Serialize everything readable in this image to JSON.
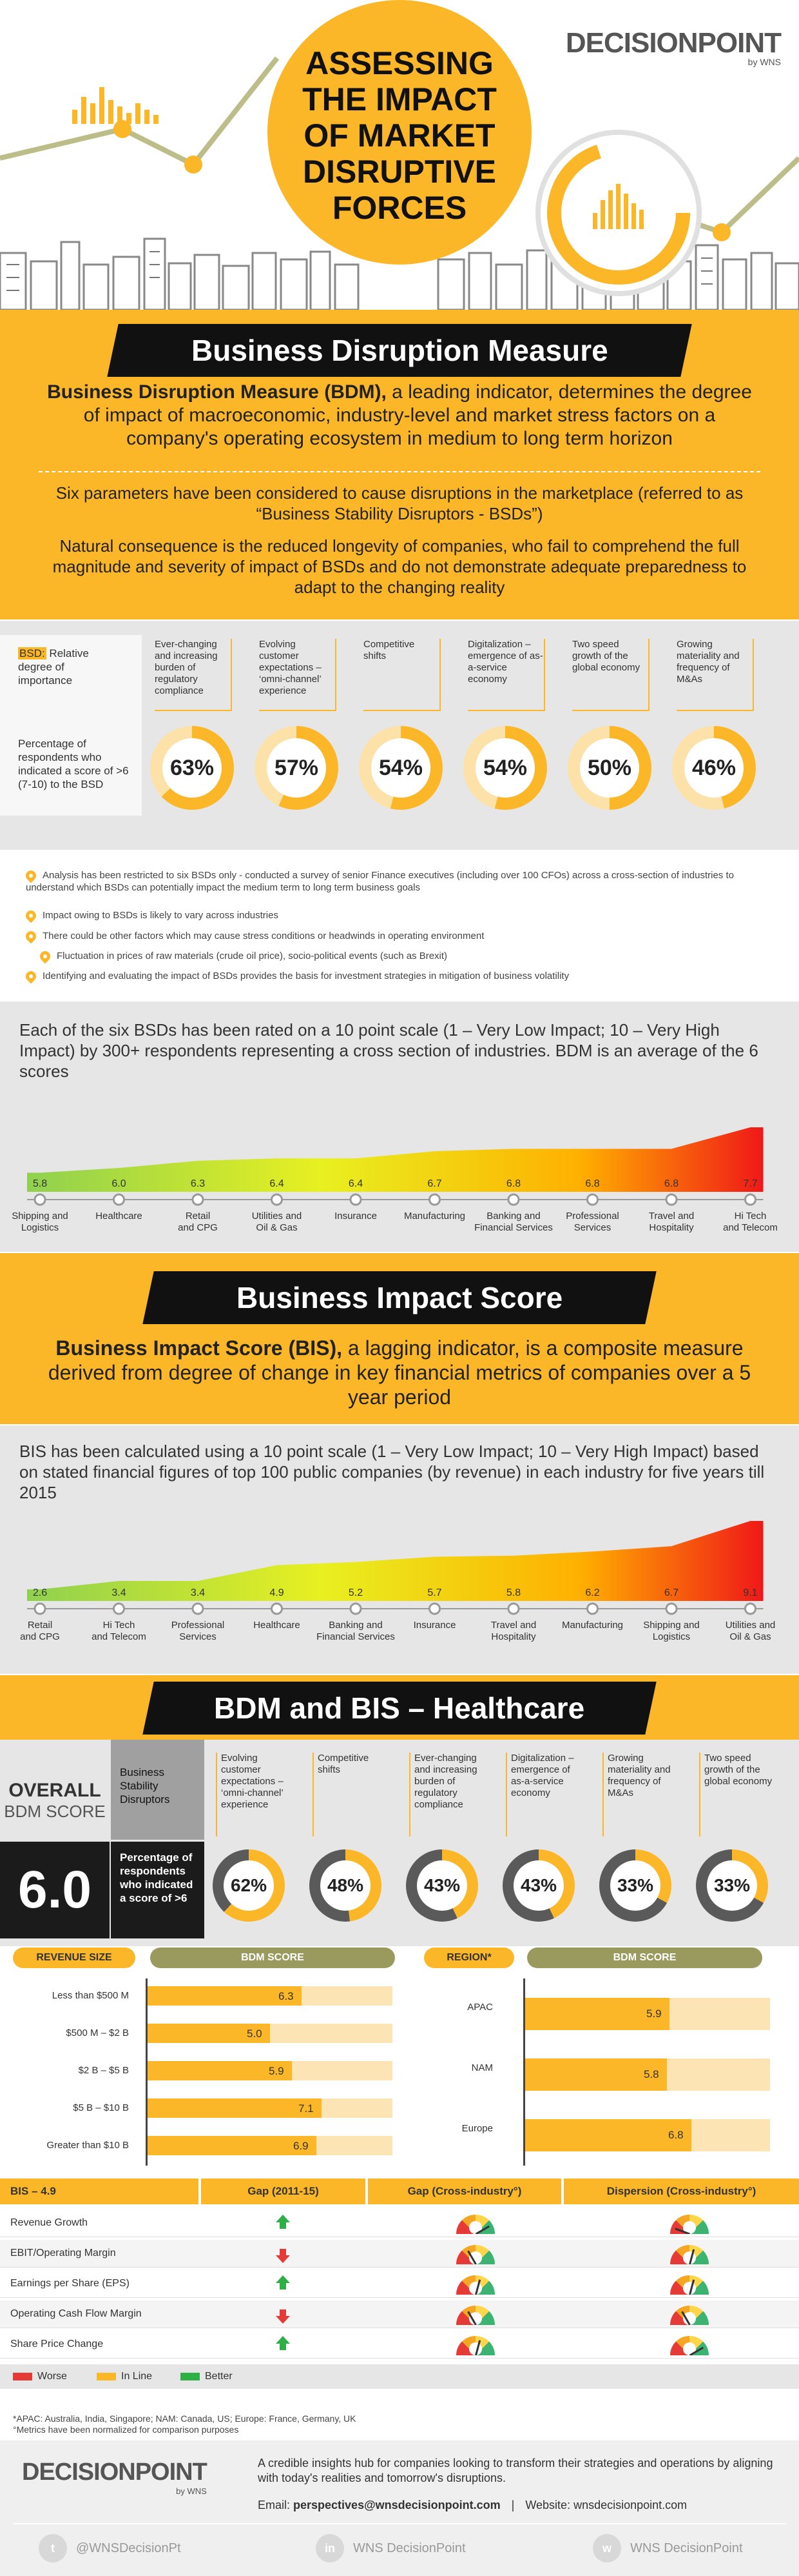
{
  "header": {
    "brand": "DECISIONPOINT",
    "brand_by": "by WNS",
    "title_lines": [
      "ASSESSING",
      "THE IMPACT",
      "OF MARKET",
      "DISRUPTIVE",
      "FORCES"
    ]
  },
  "bdm": {
    "heading": "Business Disruption Measure",
    "intro_bold": "Business Disruption Measure (BDM),",
    "intro_rest": " a leading indicator, determines the degree of impact of macroeconomic, industry-level and market stress factors on a company's operating ecosystem in medium to long term horizon",
    "params_text": "Six parameters have been considered to cause disruptions in the marketplace (referred to as “Business Stability Disruptors - BSDs”)",
    "consequence_text": "Natural consequence is the reduced longevity of companies, who fail to comprehend the full magnitude and severity of impact of BSDs and do not demonstrate adequate preparedness to adapt to the changing reality",
    "bsd_label_abbr": "BSD:",
    "bsd_label_rest": " Relative degree of importance",
    "pct_label": "Percentage of respondents who indicated a score of >6 (7-10) to the BSD",
    "bsds": [
      {
        "label": "Ever-changing and increasing burden of regulatory compliance",
        "pct": "63%",
        "value": 63
      },
      {
        "label": "Evolving customer expectations – ‘omni-channel’ experience",
        "pct": "57%",
        "value": 57
      },
      {
        "label": "Competitive shifts",
        "pct": "54%",
        "value": 54
      },
      {
        "label": "Digitalization – emergence of as-a-service economy",
        "pct": "54%",
        "value": 54
      },
      {
        "label": "Two speed growth of the global economy",
        "pct": "50%",
        "value": 50
      },
      {
        "label": "Growing materiality and frequency of M&As",
        "pct": "46%",
        "value": 46
      }
    ],
    "bullets": [
      "Analysis has been restricted to six BSDs only - conducted a survey of senior Finance executives (including over 100 CFOs) across a cross-section of industries to understand which BSDs can potentially impact the medium term to long term business goals",
      "Impact owing to BSDs is likely to vary across industries",
      "There could be other factors which may cause stress conditions or headwinds in operating environment",
      "Fluctuation in prices of raw materials (crude oil price), socio-political events (such as Brexit)",
      "Identifying and evaluating the impact of BSDs provides the basis for investment strategies in mitigation of business volatility"
    ],
    "scale_text": "Each of the six BSDs has been rated on a 10 point scale (1 – Very Low Impact; 10 – Very High Impact) by 300+ respondents representing a cross section of industries. BDM is an average of the 6 scores",
    "industries": [
      {
        "name": "Shipping and Logistics",
        "score": "5.8",
        "v": 5.8
      },
      {
        "name": "Healthcare",
        "score": "6.0",
        "v": 6.0
      },
      {
        "name": "Retail and CPG",
        "score": "6.3",
        "v": 6.3
      },
      {
        "name": "Utilities and Oil & Gas",
        "score": "6.4",
        "v": 6.4
      },
      {
        "name": "Insurance",
        "score": "6.4",
        "v": 6.4
      },
      {
        "name": "Manufacturing",
        "score": "6.7",
        "v": 6.7
      },
      {
        "name": "Banking and Financial Services",
        "score": "6.8",
        "v": 6.8
      },
      {
        "name": "Professional Services",
        "score": "6.8",
        "v": 6.8
      },
      {
        "name": "Travel and Hospitality",
        "score": "6.8",
        "v": 6.8
      },
      {
        "name": "Hi Tech and Telecom",
        "score": "7.7",
        "v": 7.7
      }
    ]
  },
  "bis": {
    "heading": "Business Impact Score",
    "intro_bold": "Business Impact Score (BIS),",
    "intro_rest": " a lagging indicator, is a composite measure derived from degree of change in key financial metrics of companies over a 5 year period",
    "scale_text": "BIS has been calculated using a 10 point scale (1 – Very Low Impact; 10 – Very High Impact) based on stated financial figures of top 100 public companies (by revenue) in each industry for five years till 2015",
    "industries": [
      {
        "name": "Retail and CPG",
        "score": "2.6",
        "v": 2.6
      },
      {
        "name": "Hi Tech and Telecom",
        "score": "3.4",
        "v": 3.4
      },
      {
        "name": "Professional Services",
        "score": "3.4",
        "v": 3.4
      },
      {
        "name": "Healthcare",
        "score": "4.9",
        "v": 4.9
      },
      {
        "name": "Banking and Financial Services",
        "score": "5.2",
        "v": 5.2
      },
      {
        "name": "Insurance",
        "score": "5.7",
        "v": 5.7
      },
      {
        "name": "Travel and Hospitality",
        "score": "5.8",
        "v": 5.8
      },
      {
        "name": "Manufacturing",
        "score": "6.2",
        "v": 6.2
      },
      {
        "name": "Shipping and Logistics",
        "score": "6.7",
        "v": 6.7
      },
      {
        "name": "Utilities and Oil & Gas",
        "score": "9.1",
        "v": 9.1
      }
    ]
  },
  "health": {
    "heading": "BDM and BIS – Healthcare",
    "overall_label_1": "OVERALL",
    "overall_label_2": "BDM SCORE",
    "overall_value": "6.0",
    "bsd_col_label": "Business Stability Disruptors",
    "pct_label": "Percentage of respondents who indicated a score of >6",
    "bsds": [
      {
        "label": "Evolving customer expectations – ‘omni-channel’ experience",
        "pct": "62%",
        "value": 62
      },
      {
        "label": "Competitive shifts",
        "pct": "48%",
        "value": 48
      },
      {
        "label": "Ever-changing and increasing burden of regulatory compliance",
        "pct": "43%",
        "value": 43
      },
      {
        "label": "Digitalization – emergence of as-a-service economy",
        "pct": "43%",
        "value": 43
      },
      {
        "label": "Growing materiality and frequency of M&As",
        "pct": "33%",
        "value": 33
      },
      {
        "label": "Two speed growth of the global economy",
        "pct": "33%",
        "value": 33
      }
    ],
    "revenue_header": "REVENUE SIZE",
    "bdm_score_header": "BDM SCORE",
    "region_header": "REGION*",
    "revenue_rows": [
      {
        "label": "Less than $500 M",
        "score": "6.3",
        "v": 6.3
      },
      {
        "label": "$500 M – $2 B",
        "score": "5.0",
        "v": 5.0
      },
      {
        "label": "$2 B – $5 B",
        "score": "5.9",
        "v": 5.9
      },
      {
        "label": "$5 B – $10 B",
        "score": "7.1",
        "v": 7.1
      },
      {
        "label": "Greater than $10 B",
        "score": "6.9",
        "v": 6.9
      }
    ],
    "region_rows": [
      {
        "label": "APAC",
        "score": "5.9",
        "v": 5.9
      },
      {
        "label": "NAM",
        "score": "5.8",
        "v": 5.8
      },
      {
        "label": "Europe",
        "score": "6.8",
        "v": 6.8
      }
    ],
    "table": {
      "headers": [
        "BIS – 4.9",
        "Gap (2011-15)",
        "Gap (Cross-industry°)",
        "Dispersion (Cross-industry°)"
      ],
      "rows": [
        {
          "metric": "Revenue Growth",
          "gap": "up",
          "cross": "green",
          "disp": "red"
        },
        {
          "metric": "EBIT/Operating Margin",
          "gap": "down",
          "cross": "orange",
          "disp": "yellow"
        },
        {
          "metric": "Earnings per Share (EPS)",
          "gap": "up",
          "cross": "yellow",
          "disp": "yellow"
        },
        {
          "metric": "Operating Cash Flow Margin",
          "gap": "down",
          "cross": "orange",
          "disp": "orange"
        },
        {
          "metric": "Share Price Change",
          "gap": "up",
          "cross": "yellow",
          "disp": "green"
        }
      ],
      "legend": [
        {
          "label": "Worse",
          "color": "#e53a35"
        },
        {
          "label": "In Line",
          "color": "#fbb728"
        },
        {
          "label": "Better",
          "color": "#2eb046"
        }
      ]
    },
    "footnote_1": "*APAC: Australia, India, Singapore; NAM: Canada, US; Europe: France, Germany, UK",
    "footnote_2": "°Metrics have been normalized for comparison purposes"
  },
  "footer": {
    "brand": "DECISIONPOINT",
    "brand_by": "by WNS",
    "tagline": "A credible insights hub for companies looking to transform their strategies and operations by aligning with today's realities and tomorrow's disruptions.",
    "email_label": "Email: ",
    "email": "perspectives@wnsdecisionpoint.com",
    "sep": "|",
    "website_label": "Website: ",
    "website": "wnsdecisionpoint.com",
    "socials": [
      {
        "icon": "twitter-icon",
        "glyph": "t",
        "label": "@WNSDecisionPt"
      },
      {
        "icon": "linkedin-icon",
        "glyph": "in",
        "label": "WNS DecisionPoint"
      },
      {
        "icon": "website-icon",
        "glyph": "w",
        "label": "WNS DecisionPoint"
      }
    ]
  },
  "colors": {
    "accent": "#fbb728",
    "dark": "#111111",
    "gray": "#e6e6e6",
    "worse": "#e53a35",
    "better": "#2eb046"
  }
}
